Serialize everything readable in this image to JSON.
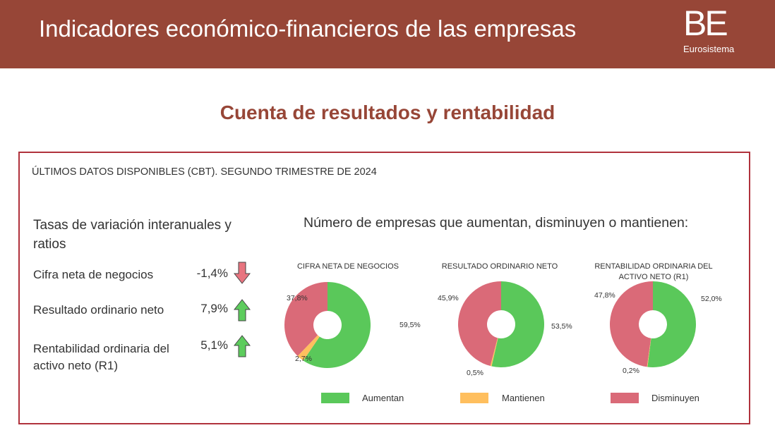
{
  "header": {
    "title": "Indicadores económico-financieros de las empresas",
    "logo_mark": "BE",
    "logo_sub": "Eurosistema"
  },
  "subtitle": "Cuenta de resultados y rentabilidad",
  "latest_data": "ÚLTIMOS DATOS DISPONIBLES (CBT). SEGUNDO TRIMESTRE DE 2024",
  "ratios": {
    "heading": "Tasas de variación interanuales y ratios",
    "items": [
      {
        "label": "Cifra neta de negocios",
        "value": "-1,4%",
        "trend": "down"
      },
      {
        "label": "Resultado ordinario neto",
        "value": "7,9%",
        "trend": "up"
      },
      {
        "label": "Rentabilidad ordinaria del activo neto (R1)",
        "value": "5,1%",
        "trend": "up"
      }
    ]
  },
  "colors": {
    "aumentan": "#5ac85a",
    "mantienen": "#ffbf5e",
    "disminuyen": "#da6a78",
    "down_arrow": "#e8747f",
    "up_arrow": "#5dcc5d"
  },
  "chart_data": {
    "type": "pie",
    "title": "Número de empresas que aumentan, disminuyen o mantienen:",
    "legend": [
      "Aumentan",
      "Mantienen",
      "Disminuyen"
    ],
    "legend_placement": "bottom",
    "charts": [
      {
        "title": "CIFRA NETA DE NEGOCIOS",
        "values": [
          59.5,
          2.7,
          37.8
        ],
        "labels": [
          "59,5%",
          "2,7%",
          "37,8%"
        ]
      },
      {
        "title": "RESULTADO ORDINARIO NETO",
        "values": [
          53.5,
          0.5,
          45.9
        ],
        "labels": [
          "53,5%",
          "0,5%",
          "45,9%"
        ]
      },
      {
        "title": "RENTABILIDAD ORDINARIA DEL ACTIVO NETO (R1)",
        "values": [
          52.0,
          0.2,
          47.8
        ],
        "labels": [
          "52,0%",
          "0,2%",
          "47,8%"
        ]
      }
    ]
  }
}
